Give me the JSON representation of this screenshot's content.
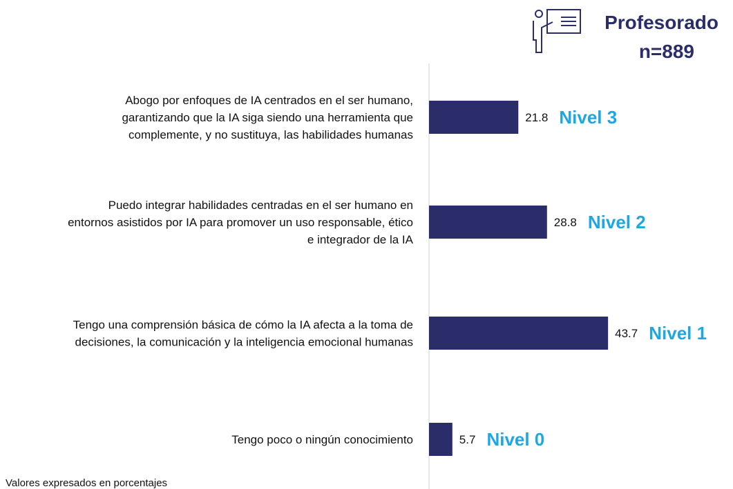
{
  "chart_data": {
    "type": "hbar",
    "header": {
      "title": "Profesorado",
      "subtitle": "n=889"
    },
    "categories": [
      [
        "Abogo por enfoques de IA centrados en el ser humano,",
        "garantizando que la IA siga siendo una herramienta que",
        "complemente, y no sustituya, las habilidades humanas"
      ],
      [
        "Puedo integrar habilidades centradas en el ser humano en",
        "entornos asistidos por IA para promover un uso responsable, ético",
        "e integrador de la IA"
      ],
      [
        "Tengo una comprensión básica de cómo la IA afecta a la toma de",
        "decisiones, la comunicación y la inteligencia emocional humanas"
      ],
      [
        "Tengo poco o ningún conocimiento"
      ]
    ],
    "values": [
      21.8,
      28.8,
      43.7,
      5.7
    ],
    "annotations": [
      "Nivel 3",
      "Nivel 2",
      "Nivel 1",
      "Nivel 0"
    ],
    "color": "#2b2d6b",
    "annotation_color": "#1ea7e1",
    "footnote": "Valores expresados en porcentajes"
  }
}
